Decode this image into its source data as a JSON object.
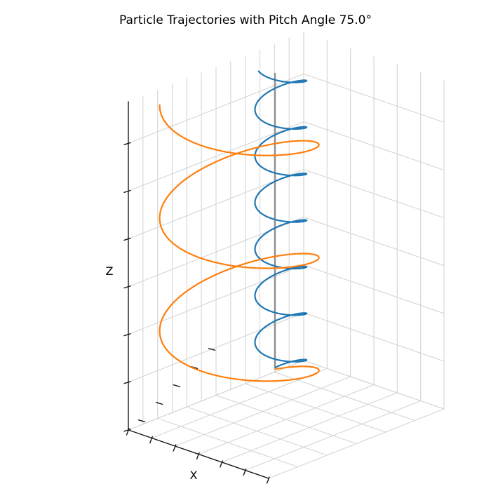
{
  "chart_data": {
    "type": "line3d",
    "title": "Particle Trajectories with Pitch Angle 75.0°",
    "xlabel": "X",
    "ylabel": "",
    "zlabel": "Z",
    "pitch_angle_deg": 75.0,
    "grid": true,
    "legend": "none",
    "tick_labels": "none",
    "colors": {
      "background": "#ffffff",
      "axis": "#1a1a1a",
      "grid": "#d5d5d5",
      "field_line": "#8f8f8f",
      "particle1": "#1f77b4",
      "particle2": "#ff7f0e",
      "text": "#000000"
    },
    "projection": {
      "origin": [
        183,
        613
      ],
      "ex": [
        200,
        69
      ],
      "ey": [
        250,
        -99
      ],
      "ez": [
        0,
        -468
      ]
    },
    "ticks": {
      "x_positions": [
        0,
        0.1667,
        0.3333,
        0.5,
        0.6667,
        0.8333,
        1.0
      ],
      "z_positions": [
        0,
        0.1455,
        0.291,
        0.4365,
        0.582,
        0.7275,
        0.873
      ],
      "wall_v_count": 13,
      "wall_u_count": 7,
      "floor_u_count": 7,
      "floor_v_count": 7
    },
    "series": [
      {
        "name": "magnetic-field-line",
        "kind": "segment",
        "color": "#8f8f8f",
        "width": 2.4,
        "u": 0.2885,
        "v": 0.605,
        "w0": 0.109,
        "w1": 1.0
      },
      {
        "name": "particle-1-blue-small-gyroradius",
        "kind": "helix",
        "color": "#1f77b4",
        "width": 2.2,
        "center_u": 0.3934,
        "center_v": 0.5546,
        "radius": 0.115,
        "turns": 6.7,
        "phase_deg": 154,
        "direction": -1,
        "w0": 0.105,
        "w1": 1.055
      },
      {
        "name": "particle-2-orange-large-gyroradius",
        "kind": "helix",
        "color": "#ff7f0e",
        "width": 2.2,
        "center_u": 0.4378,
        "center_v": 0.2823,
        "radius": 0.3546,
        "turns": 2.677,
        "phase_deg": 114.6,
        "direction": -1,
        "w0": 0.1,
        "w1": 1.02
      }
    ]
  }
}
